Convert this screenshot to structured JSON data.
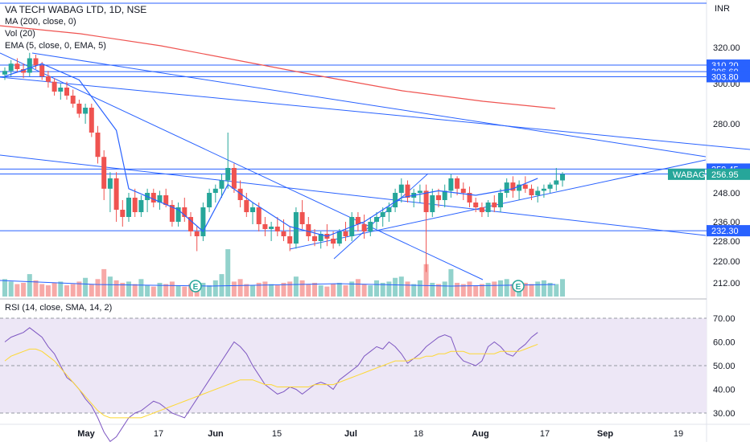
{
  "header": {
    "title": "VA TECH WABAG LTD, 1D, NSE",
    "indicators": [
      "MA (200, close, 0)",
      "Vol (20)",
      "EMA (5, close, 0, EMA, 5)"
    ],
    "currency": "INR"
  },
  "rsi_header": "RSI (14, close, SMA, 14, 2)",
  "colors": {
    "up": "#26a69a",
    "down": "#ef5350",
    "line_blue": "#2962ff",
    "ma200": "#ef5350",
    "rsi_line": "#7e57c2",
    "rsi_sma": "#fdd835",
    "rsi_band": "#ede7f6",
    "label_bg": "#2962ff",
    "ticker_bg": "#26a69a"
  },
  "chart_data": [
    {
      "type": "candlestick",
      "title": "VA TECH WABAG LTD, 1D, NSE",
      "ylim": [
        205,
        342
      ],
      "y_ticks": [
        212,
        220,
        228,
        236,
        248,
        260,
        280,
        300,
        320
      ],
      "x_ticks": [
        "May",
        "17",
        "Jun",
        "15",
        "Jul",
        "18",
        "Aug",
        "17",
        "Sep",
        "19"
      ],
      "candles": [
        [
          305,
          309,
          302,
          307
        ],
        [
          307,
          313,
          304,
          311
        ],
        [
          311,
          314,
          306,
          308
        ],
        [
          308,
          311,
          303,
          306
        ],
        [
          306,
          317,
          304,
          314
        ],
        [
          314,
          316,
          308,
          310
        ],
        [
          310,
          312,
          302,
          304
        ],
        [
          304,
          307,
          298,
          301
        ],
        [
          301,
          303,
          294,
          296
        ],
        [
          296,
          300,
          292,
          298
        ],
        [
          298,
          301,
          292,
          294
        ],
        [
          294,
          297,
          288,
          290
        ],
        [
          290,
          292,
          283,
          285
        ],
        [
          285,
          290,
          280,
          288
        ],
        [
          288,
          290,
          274,
          276
        ],
        [
          276,
          279,
          262,
          265
        ],
        [
          265,
          268,
          245,
          250
        ],
        [
          250,
          258,
          240,
          255
        ],
        [
          255,
          258,
          236,
          241
        ],
        [
          241,
          245,
          234,
          238
        ],
        [
          238,
          248,
          236,
          246
        ],
        [
          246,
          250,
          238,
          240
        ],
        [
          240,
          247,
          238,
          245
        ],
        [
          245,
          250,
          240,
          248
        ],
        [
          248,
          250,
          242,
          244
        ],
        [
          244,
          249,
          241,
          247
        ],
        [
          247,
          250,
          242,
          243
        ],
        [
          243,
          245,
          234,
          236
        ],
        [
          236,
          244,
          234,
          242
        ],
        [
          242,
          246,
          236,
          238
        ],
        [
          238,
          240,
          230,
          232
        ],
        [
          232,
          234,
          224,
          230
        ],
        [
          230,
          244,
          228,
          242
        ],
        [
          242,
          250,
          240,
          248
        ],
        [
          248,
          252,
          244,
          250
        ],
        [
          250,
          257,
          246,
          254
        ],
        [
          254,
          276,
          250,
          260
        ],
        [
          260,
          262,
          248,
          250
        ],
        [
          250,
          254,
          242,
          245
        ],
        [
          245,
          248,
          238,
          240
        ],
        [
          240,
          244,
          235,
          242
        ],
        [
          242,
          244,
          232,
          235
        ],
        [
          235,
          238,
          230,
          233
        ],
        [
          233,
          236,
          228,
          234
        ],
        [
          234,
          238,
          230,
          232
        ],
        [
          232,
          237,
          228,
          230
        ],
        [
          230,
          234,
          224,
          227
        ],
        [
          227,
          242,
          225,
          240
        ],
        [
          240,
          245,
          233,
          235
        ],
        [
          235,
          238,
          228,
          230
        ],
        [
          230,
          233,
          226,
          228
        ],
        [
          228,
          232,
          225,
          231
        ],
        [
          231,
          235,
          226,
          229
        ],
        [
          229,
          232,
          225,
          227
        ],
        [
          227,
          233,
          226,
          232
        ],
        [
          232,
          236,
          228,
          230
        ],
        [
          230,
          240,
          228,
          238
        ],
        [
          238,
          240,
          232,
          235
        ],
        [
          235,
          239,
          229,
          232
        ],
        [
          232,
          238,
          230,
          236
        ],
        [
          236,
          240,
          233,
          238
        ],
        [
          238,
          242,
          234,
          240
        ],
        [
          240,
          244,
          236,
          242
        ],
        [
          242,
          250,
          240,
          248
        ],
        [
          248,
          255,
          244,
          252
        ],
        [
          252,
          254,
          244,
          246
        ],
        [
          246,
          250,
          242,
          248
        ],
        [
          248,
          252,
          244,
          249
        ],
        [
          249,
          252,
          216,
          240
        ],
        [
          240,
          250,
          238,
          247
        ],
        [
          247,
          250,
          242,
          245
        ],
        [
          245,
          252,
          242,
          249
        ],
        [
          249,
          257,
          246,
          255
        ],
        [
          255,
          256,
          247,
          250
        ],
        [
          250,
          253,
          245,
          248
        ],
        [
          248,
          251,
          242,
          244
        ],
        [
          244,
          246,
          240,
          242
        ],
        [
          242,
          244,
          238,
          240
        ],
        [
          240,
          245,
          238,
          244
        ],
        [
          244,
          247,
          240,
          242
        ],
        [
          242,
          250,
          240,
          248
        ],
        [
          248,
          255,
          246,
          253
        ],
        [
          253,
          256,
          246,
          249
        ],
        [
          249,
          254,
          245,
          252
        ],
        [
          252,
          256,
          248,
          250
        ],
        [
          250,
          252,
          245,
          247
        ],
        [
          247,
          251,
          244,
          249
        ],
        [
          249,
          252,
          246,
          250
        ],
        [
          250,
          253,
          248,
          252
        ],
        [
          252,
          260,
          249,
          254
        ],
        [
          254,
          258,
          251,
          257
        ]
      ],
      "series": [
        {
          "name": "MA (200, close, 0)",
          "points": [
            [
              0,
              337
            ],
            [
              40,
              327
            ],
            [
              80,
              310
            ],
            [
              110,
              296
            ],
            [
              130,
              285
            ]
          ]
        },
        {
          "name": "EMA (5, close, 0, EMA, 5)",
          "points": [
            [
              0,
              304
            ],
            [
              6,
              311
            ],
            [
              12,
              302
            ],
            [
              18,
              277
            ],
            [
              20,
              250
            ],
            [
              28,
              241
            ],
            [
              32,
              232
            ],
            [
              36,
              252
            ],
            [
              40,
              244
            ],
            [
              46,
              234
            ],
            [
              52,
              230
            ],
            [
              58,
              236
            ],
            [
              64,
              246
            ],
            [
              70,
              249
            ],
            [
              76,
              247
            ],
            [
              82,
              250
            ],
            [
              86,
              255
            ]
          ]
        },
        {
          "name": "Volume",
          "values": [
            14,
            12,
            10,
            11,
            18,
            13,
            10,
            9,
            11,
            12,
            9,
            10,
            12,
            15,
            10,
            14,
            22,
            16,
            13,
            11,
            12,
            10,
            14,
            9,
            8,
            11,
            10,
            12,
            9,
            8,
            10,
            12,
            11,
            9,
            13,
            18,
            38,
            12,
            14,
            10,
            9,
            11,
            12,
            10,
            9,
            11,
            12,
            16,
            13,
            10,
            11,
            9,
            8,
            10,
            11,
            9,
            12,
            14,
            10,
            9,
            13,
            11,
            12,
            15,
            16,
            12,
            10,
            13,
            26,
            11,
            10,
            12,
            22,
            11,
            10,
            12,
            9,
            10,
            11,
            12,
            13,
            14,
            10,
            12,
            11,
            10,
            12,
            13,
            11,
            10,
            14
          ]
        }
      ],
      "price_labels": [
        {
          "label": "310.20",
          "value": 310.2
        },
        {
          "label": "306.60",
          "value": 306.6
        },
        {
          "label": "303.80",
          "value": 303.8
        },
        {
          "label": "259.45",
          "value": 259.45
        },
        {
          "label": "257.10",
          "value": 257.1
        },
        {
          "label": "256.95",
          "value": 256.95,
          "ticker": "WABAG"
        },
        {
          "label": "232.30",
          "value": 232.3
        }
      ],
      "earnings_markers": [
        "E",
        "E"
      ]
    },
    {
      "type": "line",
      "title": "RSI (14, close, SMA, 14, 2)",
      "ylim": [
        27,
        72
      ],
      "y_ticks": [
        "70.00",
        "60.00",
        "50.00",
        "40.00",
        "30.00"
      ],
      "band": [
        30,
        70
      ],
      "series": [
        {
          "name": "RSI",
          "values": [
            60,
            62,
            63,
            64,
            66,
            64,
            62,
            58,
            55,
            50,
            45,
            43,
            40,
            36,
            33,
            28,
            22,
            18,
            20,
            24,
            28,
            30,
            31,
            33,
            35,
            34,
            32,
            30,
            29,
            28,
            32,
            36,
            40,
            44,
            48,
            52,
            56,
            60,
            58,
            55,
            50,
            46,
            42,
            40,
            38,
            39,
            41,
            40,
            38,
            40,
            42,
            43,
            42,
            40,
            44,
            46,
            48,
            50,
            54,
            56,
            58,
            57,
            60,
            58,
            55,
            51,
            53,
            55,
            58,
            60,
            62,
            63,
            62,
            55,
            52,
            51,
            50,
            52,
            58,
            60,
            58,
            55,
            54,
            57,
            59,
            62,
            64
          ]
        },
        {
          "name": "RSI SMA",
          "values": [
            52,
            54,
            55,
            56,
            57,
            57,
            56,
            54,
            52,
            49,
            46,
            43,
            40,
            37,
            34,
            31,
            29,
            28,
            28,
            28,
            28,
            28,
            28,
            29,
            30,
            31,
            32,
            33,
            34,
            35,
            36,
            37,
            38,
            39,
            40,
            41,
            42,
            43,
            44,
            44,
            44,
            43,
            42,
            42,
            41,
            41,
            41,
            41,
            41,
            41,
            42,
            42,
            42,
            42,
            43,
            44,
            45,
            46,
            47,
            48,
            49,
            50,
            51,
            52,
            52,
            52,
            53,
            53,
            54,
            54,
            55,
            55,
            56,
            56,
            56,
            55,
            55,
            55,
            55,
            55,
            56,
            56,
            56,
            56,
            57,
            58,
            59
          ]
        }
      ]
    }
  ]
}
